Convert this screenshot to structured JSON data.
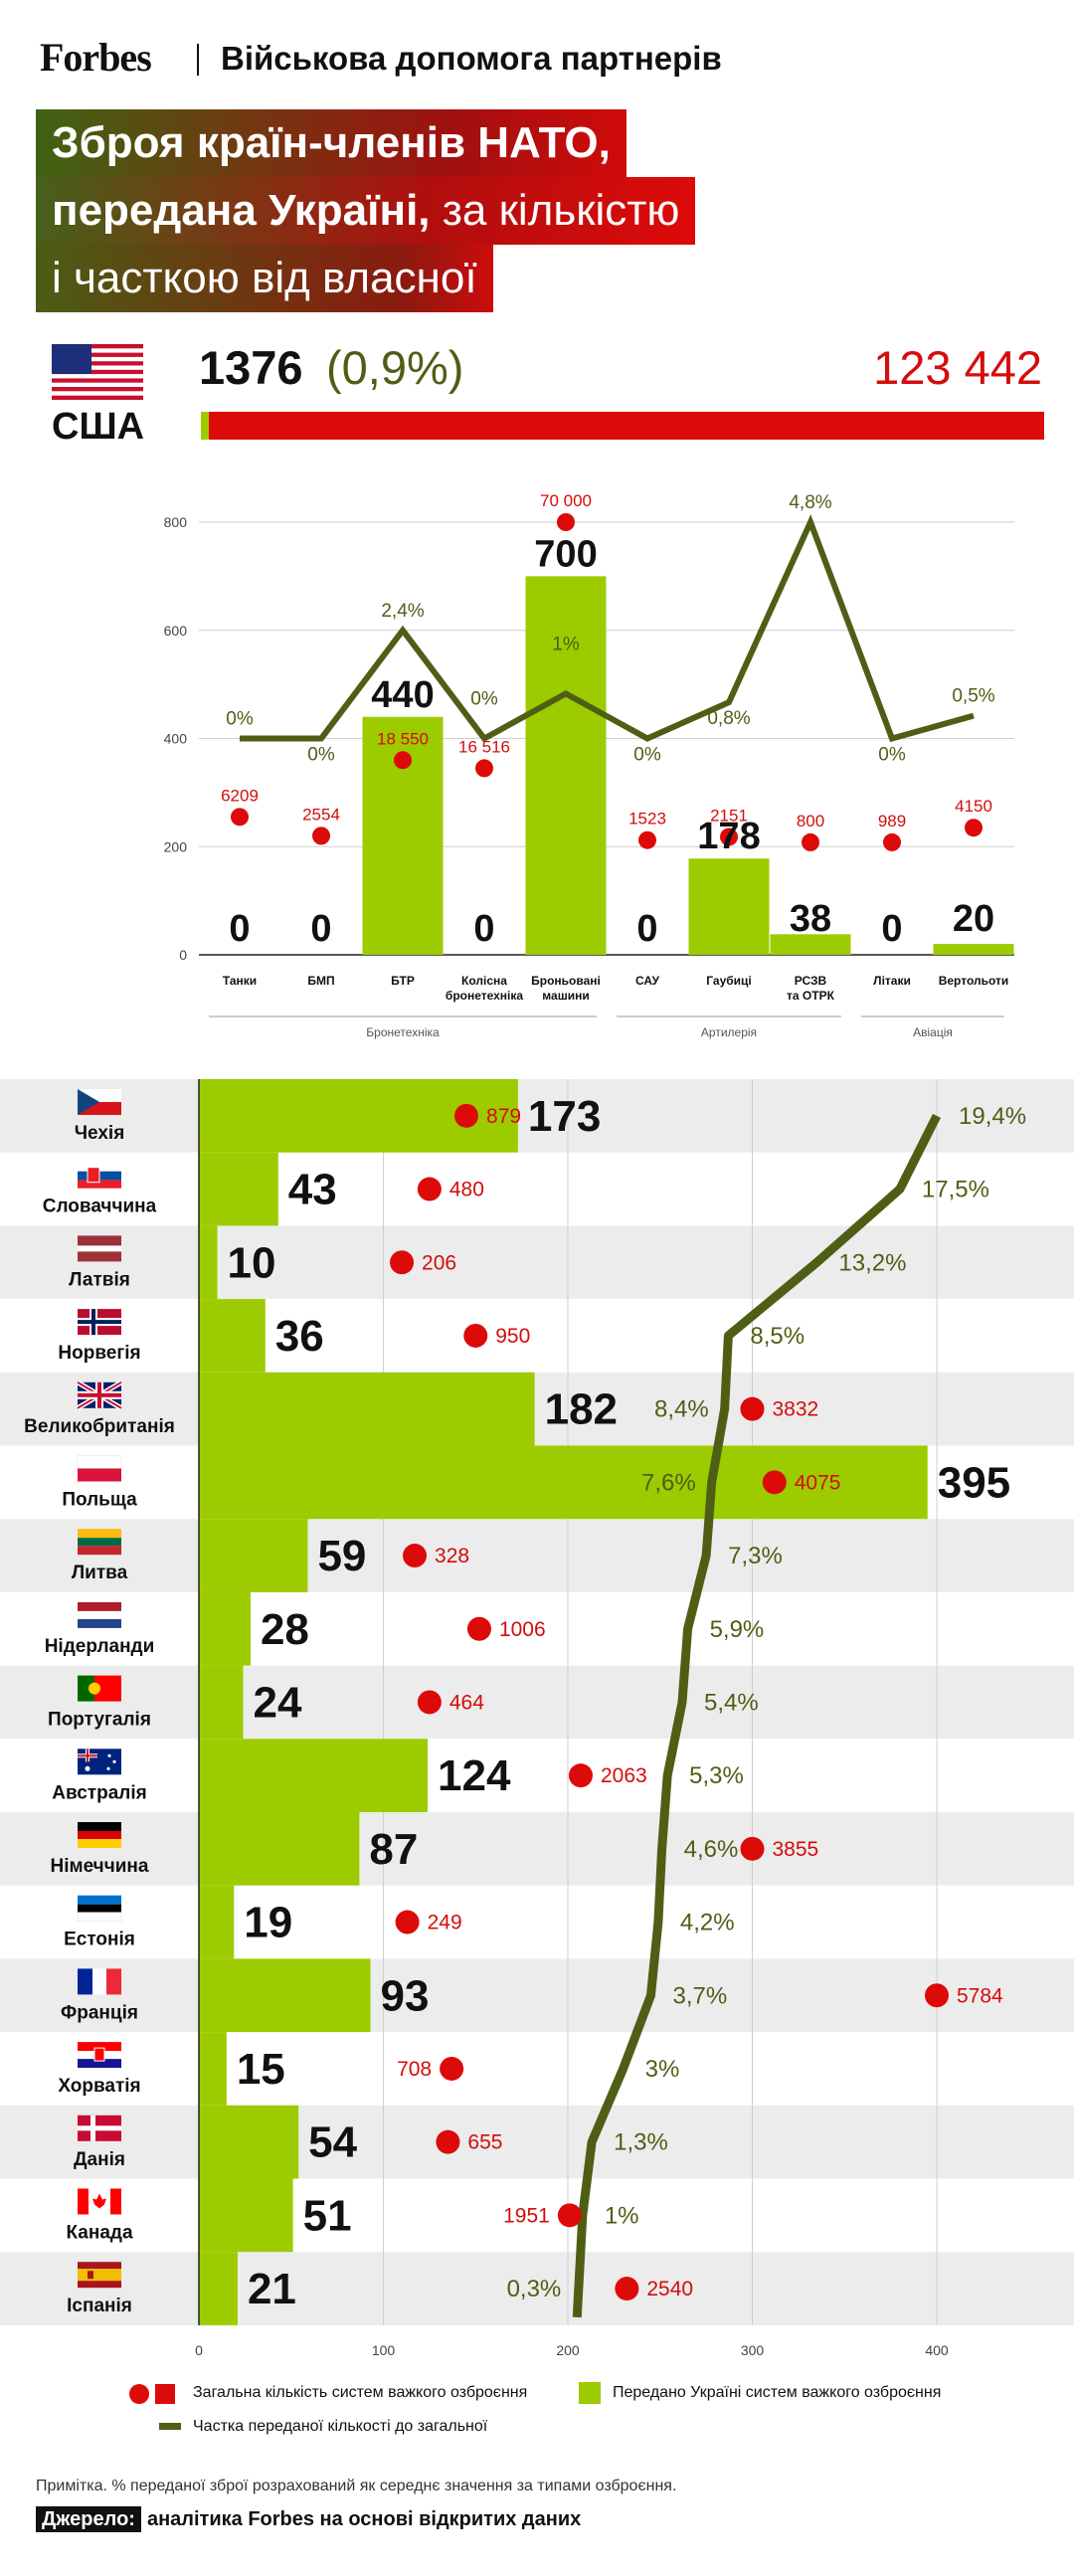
{
  "header": {
    "brand": "Forbes",
    "section": "Військова допомога партнерів"
  },
  "title": {
    "line1": "Зброя країн-членів НАТО,",
    "line2_bold": "передана Україні,",
    "line2_rest": " за кількістю",
    "line3": "і часткою від власної"
  },
  "usa": {
    "country": "США",
    "transferred": "1376",
    "share": "(0,9%)",
    "total": "123 442"
  },
  "colors": {
    "green": "#9ccc00",
    "red": "#dd0a0a",
    "olive": "#4e5f15",
    "band": "#ececec"
  },
  "chart_data": [
    {
      "type": "bar",
      "title": "США",
      "categories": [
        "Танки",
        "БМП",
        "БТР",
        "Колісна бронетехніка",
        "Броньовані машини",
        "САУ",
        "Гаубиці",
        "РСЗВ та ОТРК",
        "Літаки",
        "Вертольоти"
      ],
      "category_lines": [
        [
          "Танки"
        ],
        [
          "БМП"
        ],
        [
          "БТР"
        ],
        [
          "Колісна",
          "бронетехніка"
        ],
        [
          "Броньовані",
          "машини"
        ],
        [
          "САУ"
        ],
        [
          "Гаубиці"
        ],
        [
          "РСЗВ",
          "та ОТРК"
        ],
        [
          "Літаки"
        ],
        [
          "Вертольоти"
        ]
      ],
      "groups": [
        {
          "label": "Бронетехніка",
          "from": 0,
          "to": 4
        },
        {
          "label": "Артилерія",
          "from": 5,
          "to": 7
        },
        {
          "label": "Авіація",
          "from": 8,
          "to": 9
        }
      ],
      "ylim": [
        0,
        800
      ],
      "yticks": [
        0,
        200,
        400,
        600,
        800
      ],
      "grid": true,
      "series": [
        {
          "name": "Передано Україні систем важкого озброєння",
          "values": [
            0,
            0,
            440,
            0,
            700,
            0,
            178,
            38,
            0,
            20
          ],
          "labels": [
            "0",
            "0",
            "440",
            "0",
            "700",
            "0",
            "178",
            "38",
            "0",
            "20"
          ]
        },
        {
          "name": "Загальна кількість систем важкого озброєння",
          "labels": [
            "6209",
            "2554",
            "18 550",
            "16 516",
            "70 000",
            "1523",
            "2151",
            "800",
            "989",
            "4150"
          ],
          "plot_y": [
            255,
            220,
            360,
            345,
            800,
            212,
            218,
            208,
            208,
            235
          ]
        },
        {
          "name": "Частка переданої кількості до загальної",
          "values": [
            0,
            0,
            2.4,
            0,
            1,
            0,
            0.8,
            4.8,
            0,
            0.5
          ],
          "labels": [
            "0%",
            "0%",
            "2,4%",
            "0%",
            "1%",
            "0%",
            "0,8%",
            "4,8%",
            "0%",
            "0,5%"
          ],
          "plot_y": [
            400,
            400,
            600,
            400,
            483,
            400,
            467,
            800,
            400,
            442
          ]
        }
      ]
    },
    {
      "type": "bar",
      "orientation": "horizontal",
      "categories": [
        "Чехія",
        "Словаччина",
        "Латвія",
        "Норвегія",
        "Великобританія",
        "Польща",
        "Литва",
        "Нідерланди",
        "Португалія",
        "Австралія",
        "Німеччина",
        "Естонія",
        "Франція",
        "Хорватія",
        "Данія",
        "Канада",
        "Іспанія"
      ],
      "flags": [
        "cz",
        "sk",
        "lv",
        "no",
        "gb",
        "pl",
        "lt",
        "nl",
        "pt",
        "au",
        "de",
        "ee",
        "fr",
        "hr",
        "dk",
        "ca",
        "es"
      ],
      "xlim": [
        0,
        470
      ],
      "xticks": [
        0,
        100,
        200,
        300,
        400
      ],
      "grid": true,
      "series": [
        {
          "name": "Передано Україні систем важкого озброєння",
          "values": [
            173,
            43,
            10,
            36,
            182,
            395,
            59,
            28,
            24,
            124,
            87,
            19,
            93,
            15,
            54,
            51,
            21
          ]
        },
        {
          "name": "Загальна кількість систем важкого озброєння",
          "labels": [
            "879",
            "480",
            "206",
            "950",
            "3832",
            "4075",
            "328",
            "1006",
            "464",
            "2063",
            "3855",
            "249",
            "5784",
            "708",
            "655",
            "1951",
            "2540"
          ],
          "plot_x": [
            145,
            125,
            110,
            150,
            300,
            312,
            117,
            152,
            125,
            207,
            300,
            113,
            400,
            137,
            135,
            201,
            232
          ]
        },
        {
          "name": "Частка переданої кількості до загальної",
          "values": [
            19.4,
            17.5,
            13.2,
            8.5,
            8.4,
            7.6,
            7.3,
            5.9,
            5.4,
            5.3,
            4.6,
            4.2,
            3.7,
            3,
            1.3,
            1,
            0.3
          ],
          "labels": [
            "19,4%",
            "17,5%",
            "13,2%",
            "8,5%",
            "8,4%",
            "7,6%",
            "7,3%",
            "5,9%",
            "5,4%",
            "5,3%",
            "4,6%",
            "4,2%",
            "3,7%",
            "3%",
            "1,3%",
            "1%",
            "0,3%"
          ],
          "plot_x": [
            400,
            380,
            335,
            287,
            285,
            278,
            275,
            265,
            262,
            254,
            251,
            249,
            245,
            230,
            213,
            208,
            205
          ]
        }
      ]
    }
  ],
  "legend": {
    "total": "Загальна кількість систем важкого озброєння",
    "transferred": "Передано Україні систем важкого озброєння",
    "share": "Частка переданої кількості до загальної"
  },
  "note": "Примітка. % переданої зброї розрахований як середнє значення за типами озброєння.",
  "source": {
    "label": "Джерело:",
    "text": "аналітика Forbes на основі відкритих даних"
  }
}
